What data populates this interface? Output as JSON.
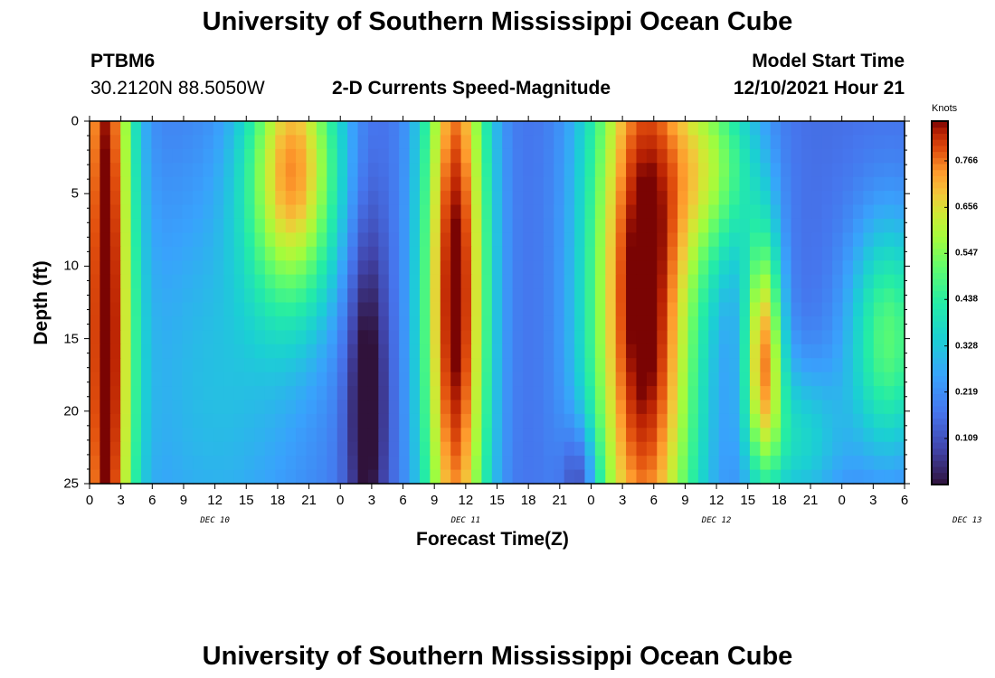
{
  "page": {
    "title_top": "University of Southern Mississippi Ocean Cube",
    "title_bottom": "University of Southern Mississippi Ocean Cube",
    "station_id": "PTBM6",
    "station_location": "30.2120N  88.5050W",
    "plot_title": "2-D Currents Speed-Magnitude",
    "model_start_label": "Model Start Time",
    "model_start_value": "12/10/2021 Hour 21"
  },
  "chart_data": {
    "type": "heatmap",
    "title": "2-D Currents Speed-Magnitude",
    "xlabel": "Forecast Time(Z)",
    "ylabel": "Depth (ft)",
    "units_label": "Knots",
    "x_tick_labels": [
      "0",
      "3",
      "6",
      "9",
      "12",
      "15",
      "18",
      "21",
      "0",
      "3",
      "6",
      "9",
      "12",
      "15",
      "18",
      "21",
      "0",
      "3",
      "6",
      "9",
      "12",
      "15",
      "18",
      "21",
      "0",
      "3",
      "6"
    ],
    "day_labels": [
      "DEC 10",
      "DEC 11",
      "DEC 12",
      "DEC 13"
    ],
    "y_tick_labels": [
      "0",
      "5",
      "10",
      "15",
      "20",
      "25"
    ],
    "xlim_hours": [
      0,
      78
    ],
    "ylim_depth_ft": [
      0,
      25
    ],
    "colorbar_ticks": [
      "0.766",
      "0.656",
      "0.547",
      "0.438",
      "0.328",
      "0.219",
      "0.109"
    ],
    "colorbar_values": [
      0.766,
      0.656,
      0.547,
      0.438,
      0.328,
      0.219,
      0.109
    ],
    "colorbar_range": [
      0,
      0.86
    ],
    "grid_cols": 79,
    "grid_rows": 26,
    "speed_blobs": [
      {
        "hour": 1.5,
        "depth": 12,
        "spread_h": 1.9,
        "spread_d": 40,
        "amp": 0.7
      },
      {
        "hour": 19.5,
        "depth": 3,
        "spread_h": 3.2,
        "spread_d": 7,
        "amp": 0.55
      },
      {
        "hour": 12,
        "depth": 18,
        "spread_h": 7,
        "spread_d": 12,
        "amp": 0.15
      },
      {
        "hour": 35,
        "depth": 12,
        "spread_h": 2.3,
        "spread_d": 20,
        "amp": 0.72
      },
      {
        "hour": 53,
        "depth": 12,
        "spread_h": 3.8,
        "spread_d": 20,
        "amp": 0.74
      },
      {
        "hour": 64.5,
        "depth": 16,
        "spread_h": 1.3,
        "spread_d": 6,
        "amp": 0.55
      },
      {
        "hour": 76.5,
        "depth": 15,
        "spread_h": 2.8,
        "spread_d": 6,
        "amp": 0.34
      },
      {
        "hour": 60,
        "depth": 3,
        "spread_h": 3,
        "spread_d": 5,
        "amp": 0.3
      },
      {
        "hour": 68,
        "depth": 22,
        "spread_h": 3,
        "spread_d": 4,
        "amp": 0.2
      }
    ],
    "low_blobs": [
      {
        "hour": 26.5,
        "depth": 19,
        "spread_h": 1.4,
        "spread_d": 9,
        "amp": 0.22
      },
      {
        "hour": 47,
        "depth": 25,
        "spread_h": 1.2,
        "spread_d": 3,
        "amp": 0.2
      }
    ],
    "base_speed": 0.16
  }
}
